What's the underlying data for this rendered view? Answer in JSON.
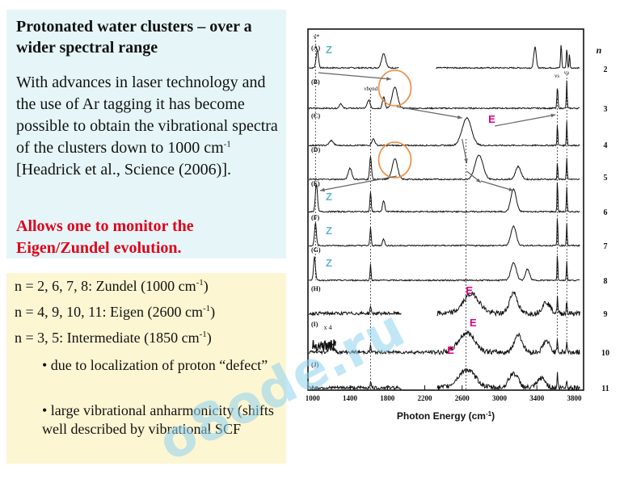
{
  "slide": {
    "title": "Protonated water clusters – over a wider spectral range",
    "body_main": "With advances in laser technology and the use of Ar tagging it has become possible to obtain the vibrational spectra of the clusters down to 1000 cm",
    "body_sup": "-1",
    "body_cite": " [Headrick et al., Science (2006)].",
    "callout": "Allows one to monitor the Eigen/Zundel evolution.",
    "assignments": [
      {
        "text": "n = 2, 6, 7, 8: Zundel (1000 cm",
        "sup": "-1",
        "end": ")"
      },
      {
        "text": "n = 4, 9, 10, 11: Eigen (2600 cm",
        "sup": "-1",
        "end": ")"
      },
      {
        "text": "n = 3, 5: Intermediate (1850 cm",
        "sup": "-1",
        "end": ")"
      }
    ],
    "bullets": [
      "• due to localization of proton “defect”",
      "• large vibrational anharmonicity (shifts well described by vibrational SCF"
    ],
    "watermark": "o8ode.ru"
  },
  "figure": {
    "xlabel": "Photon Energy (cm",
    "xlabel_sup": "-1",
    "xlabel_end": ")",
    "n_header": "n",
    "x_ticks": [
      1000,
      1400,
      1800,
      2200,
      2600,
      3000,
      3400,
      3800
    ],
    "xlim": [
      950,
      3900
    ],
    "panels": [
      {
        "label": "(A)",
        "n": "2"
      },
      {
        "label": "(B)",
        "n": "3"
      },
      {
        "label": "(C)",
        "n": "4"
      },
      {
        "label": "(D)",
        "n": "5"
      },
      {
        "label": "(E)",
        "n": "6"
      },
      {
        "label": "(F)",
        "n": "7"
      },
      {
        "label": "(G)",
        "n": "8"
      },
      {
        "label": "(H)",
        "n": "9"
      },
      {
        "label": "(I)",
        "n": "10"
      },
      {
        "label": "(J)",
        "n": "11"
      }
    ],
    "annotations": {
      "z_label": "Z",
      "e_label": "E",
      "x4_label": "x 4",
      "nu_star": "ν*",
      "nu_bend": "νbend",
      "nu_s": "νs",
      "nu_a": "νa"
    },
    "colors": {
      "zundel": "#5fb8c8",
      "eigen": "#e0007a",
      "circle": "#f08a3c",
      "ink": "#111111"
    }
  }
}
